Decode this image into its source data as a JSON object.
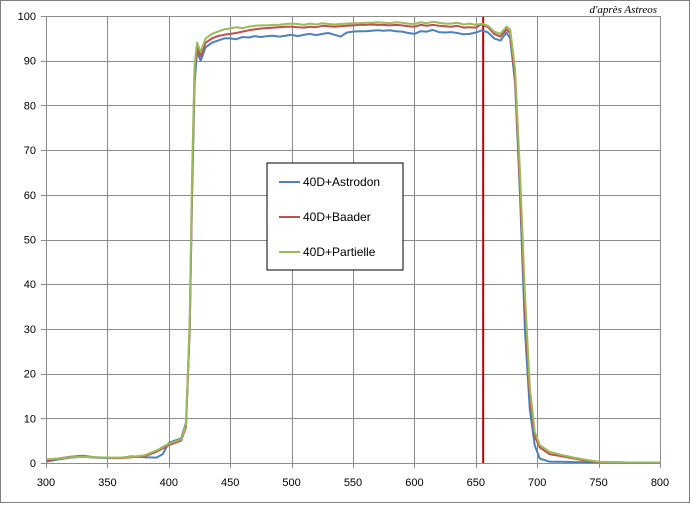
{
  "credit": "d'après Astreos",
  "chart_data": {
    "type": "line",
    "title": "",
    "xlabel": "",
    "ylabel": "",
    "xlim": [
      300,
      800
    ],
    "ylim": [
      0,
      100
    ],
    "x_ticks": [
      300,
      350,
      400,
      450,
      500,
      550,
      600,
      650,
      700,
      750,
      800
    ],
    "y_ticks": [
      0,
      10,
      20,
      30,
      40,
      50,
      60,
      70,
      80,
      90,
      100
    ],
    "grid": true,
    "legend_position": "center-left",
    "reference_line": {
      "x": 656,
      "color": "#c00000"
    },
    "series": [
      {
        "name": "40D+Astrodon",
        "color": "#4f81bd",
        "points": [
          [
            300,
            0.3
          ],
          [
            310,
            0.8
          ],
          [
            320,
            1.2
          ],
          [
            330,
            1.4
          ],
          [
            340,
            1.2
          ],
          [
            350,
            1.1
          ],
          [
            360,
            1.1
          ],
          [
            370,
            1.5
          ],
          [
            380,
            1.3
          ],
          [
            390,
            1.2
          ],
          [
            395,
            2.0
          ],
          [
            400,
            4.5
          ],
          [
            405,
            5.0
          ],
          [
            410,
            5.5
          ],
          [
            414,
            9.0
          ],
          [
            417,
            30
          ],
          [
            419,
            60
          ],
          [
            421,
            85
          ],
          [
            423,
            92
          ],
          [
            426,
            90
          ],
          [
            430,
            93
          ],
          [
            435,
            94
          ],
          [
            440,
            94.5
          ],
          [
            445,
            95
          ],
          [
            450,
            95
          ],
          [
            455,
            94.8
          ],
          [
            460,
            95.3
          ],
          [
            465,
            95.2
          ],
          [
            470,
            95.5
          ],
          [
            475,
            95.3
          ],
          [
            480,
            95.5
          ],
          [
            485,
            95.6
          ],
          [
            490,
            95.4
          ],
          [
            495,
            95.6
          ],
          [
            500,
            95.8
          ],
          [
            505,
            95.5
          ],
          [
            510,
            95.8
          ],
          [
            515,
            96
          ],
          [
            520,
            95.7
          ],
          [
            525,
            96
          ],
          [
            530,
            96.2
          ],
          [
            535,
            95.8
          ],
          [
            540,
            95.4
          ],
          [
            545,
            96.3
          ],
          [
            550,
            96.5
          ],
          [
            555,
            96.6
          ],
          [
            560,
            96.6
          ],
          [
            565,
            96.7
          ],
          [
            570,
            96.8
          ],
          [
            575,
            96.7
          ],
          [
            580,
            96.8
          ],
          [
            585,
            96.6
          ],
          [
            590,
            96.5
          ],
          [
            595,
            96.2
          ],
          [
            600,
            96.0
          ],
          [
            605,
            96.6
          ],
          [
            610,
            96.5
          ],
          [
            615,
            96.9
          ],
          [
            620,
            96.4
          ],
          [
            625,
            96.3
          ],
          [
            630,
            96.4
          ],
          [
            635,
            96.2
          ],
          [
            640,
            95.9
          ],
          [
            645,
            96.0
          ],
          [
            650,
            96.3
          ],
          [
            655,
            96.8
          ],
          [
            660,
            96.3
          ],
          [
            665,
            95.0
          ],
          [
            670,
            94.5
          ],
          [
            675,
            96.3
          ],
          [
            678,
            95.0
          ],
          [
            682,
            85
          ],
          [
            686,
            60
          ],
          [
            690,
            30
          ],
          [
            694,
            12
          ],
          [
            698,
            4
          ],
          [
            702,
            1.0
          ],
          [
            710,
            0.3
          ],
          [
            720,
            0.3
          ],
          [
            730,
            0.2
          ],
          [
            740,
            0.2
          ],
          [
            750,
            0.2
          ],
          [
            760,
            0.2
          ],
          [
            780,
            0.1
          ],
          [
            800,
            0.1
          ]
        ]
      },
      {
        "name": "40D+Baader",
        "color": "#c0504d",
        "points": [
          [
            300,
            0.5
          ],
          [
            310,
            1.0
          ],
          [
            320,
            1.4
          ],
          [
            330,
            1.6
          ],
          [
            340,
            1.3
          ],
          [
            350,
            1.2
          ],
          [
            360,
            1.1
          ],
          [
            370,
            1.3
          ],
          [
            380,
            1.5
          ],
          [
            390,
            2.5
          ],
          [
            400,
            4.0
          ],
          [
            405,
            4.5
          ],
          [
            410,
            5.0
          ],
          [
            414,
            8.0
          ],
          [
            417,
            30
          ],
          [
            419,
            62
          ],
          [
            421,
            88
          ],
          [
            423,
            93
          ],
          [
            426,
            91
          ],
          [
            430,
            94
          ],
          [
            435,
            95
          ],
          [
            440,
            95.5
          ],
          [
            445,
            95.8
          ],
          [
            450,
            96
          ],
          [
            455,
            96.2
          ],
          [
            460,
            96.5
          ],
          [
            465,
            96.8
          ],
          [
            470,
            97
          ],
          [
            475,
            97.2
          ],
          [
            480,
            97.3
          ],
          [
            485,
            97.4
          ],
          [
            490,
            97.5
          ],
          [
            495,
            97.6
          ],
          [
            500,
            97.6
          ],
          [
            505,
            97.5
          ],
          [
            510,
            97.4
          ],
          [
            515,
            97.6
          ],
          [
            520,
            97.5
          ],
          [
            525,
            97.8
          ],
          [
            530,
            97.7
          ],
          [
            535,
            97.6
          ],
          [
            540,
            97.7
          ],
          [
            545,
            97.8
          ],
          [
            550,
            97.9
          ],
          [
            555,
            98.0
          ],
          [
            560,
            98.0
          ],
          [
            565,
            98.1
          ],
          [
            570,
            98.0
          ],
          [
            575,
            98.0
          ],
          [
            580,
            97.9
          ],
          [
            585,
            98.0
          ],
          [
            590,
            97.9
          ],
          [
            595,
            97.7
          ],
          [
            600,
            97.6
          ],
          [
            605,
            98.0
          ],
          [
            610,
            97.8
          ],
          [
            615,
            98.0
          ],
          [
            620,
            97.8
          ],
          [
            625,
            97.7
          ],
          [
            630,
            97.6
          ],
          [
            635,
            97.8
          ],
          [
            640,
            97.4
          ],
          [
            645,
            97.5
          ],
          [
            650,
            97.4
          ],
          [
            655,
            98.2
          ],
          [
            660,
            97.5
          ],
          [
            665,
            96.0
          ],
          [
            670,
            95.4
          ],
          [
            675,
            97.0
          ],
          [
            678,
            96.2
          ],
          [
            682,
            86
          ],
          [
            686,
            62
          ],
          [
            690,
            35
          ],
          [
            694,
            15
          ],
          [
            698,
            6
          ],
          [
            702,
            3.5
          ],
          [
            710,
            2.0
          ],
          [
            720,
            1.5
          ],
          [
            730,
            1.0
          ],
          [
            740,
            0.5
          ],
          [
            750,
            0.2
          ],
          [
            760,
            0.1
          ],
          [
            780,
            0.1
          ],
          [
            800,
            0.1
          ]
        ]
      },
      {
        "name": "40D+Partielle",
        "color": "#9bbb59",
        "points": [
          [
            300,
            0.8
          ],
          [
            310,
            1.0
          ],
          [
            320,
            1.3
          ],
          [
            330,
            1.4
          ],
          [
            340,
            1.3
          ],
          [
            350,
            1.2
          ],
          [
            360,
            1.2
          ],
          [
            370,
            1.4
          ],
          [
            380,
            1.7
          ],
          [
            390,
            2.8
          ],
          [
            400,
            4.3
          ],
          [
            405,
            4.8
          ],
          [
            410,
            5.3
          ],
          [
            414,
            8.5
          ],
          [
            417,
            32
          ],
          [
            419,
            65
          ],
          [
            421,
            89
          ],
          [
            423,
            94
          ],
          [
            426,
            92
          ],
          [
            430,
            95
          ],
          [
            435,
            96
          ],
          [
            440,
            96.5
          ],
          [
            445,
            97
          ],
          [
            450,
            97.2
          ],
          [
            455,
            97.5
          ],
          [
            460,
            97.3
          ],
          [
            465,
            97.6
          ],
          [
            470,
            97.8
          ],
          [
            475,
            97.9
          ],
          [
            480,
            97.9
          ],
          [
            485,
            98.0
          ],
          [
            490,
            98.0
          ],
          [
            495,
            98.2
          ],
          [
            500,
            98.3
          ],
          [
            505,
            98.2
          ],
          [
            510,
            98.0
          ],
          [
            515,
            98.3
          ],
          [
            520,
            98.1
          ],
          [
            525,
            98.4
          ],
          [
            530,
            98.2
          ],
          [
            535,
            98.1
          ],
          [
            540,
            98.2
          ],
          [
            545,
            98.3
          ],
          [
            550,
            98.4
          ],
          [
            555,
            98.4
          ],
          [
            560,
            98.5
          ],
          [
            565,
            98.5
          ],
          [
            570,
            98.6
          ],
          [
            575,
            98.5
          ],
          [
            580,
            98.4
          ],
          [
            585,
            98.6
          ],
          [
            590,
            98.5
          ],
          [
            595,
            98.3
          ],
          [
            600,
            98.2
          ],
          [
            605,
            98.6
          ],
          [
            610,
            98.4
          ],
          [
            615,
            98.7
          ],
          [
            620,
            98.5
          ],
          [
            625,
            98.3
          ],
          [
            630,
            98.3
          ],
          [
            635,
            98.5
          ],
          [
            640,
            98.1
          ],
          [
            645,
            98.3
          ],
          [
            650,
            98.0
          ],
          [
            655,
            98.3
          ],
          [
            660,
            97.8
          ],
          [
            665,
            96.5
          ],
          [
            670,
            96.0
          ],
          [
            675,
            97.6
          ],
          [
            678,
            97.0
          ],
          [
            682,
            88
          ],
          [
            686,
            65
          ],
          [
            690,
            38
          ],
          [
            694,
            17
          ],
          [
            698,
            7
          ],
          [
            702,
            4.0
          ],
          [
            710,
            2.5
          ],
          [
            720,
            1.8
          ],
          [
            730,
            1.2
          ],
          [
            740,
            0.7
          ],
          [
            750,
            0.3
          ],
          [
            760,
            0.2
          ],
          [
            780,
            0.1
          ],
          [
            800,
            0.1
          ]
        ]
      }
    ]
  }
}
